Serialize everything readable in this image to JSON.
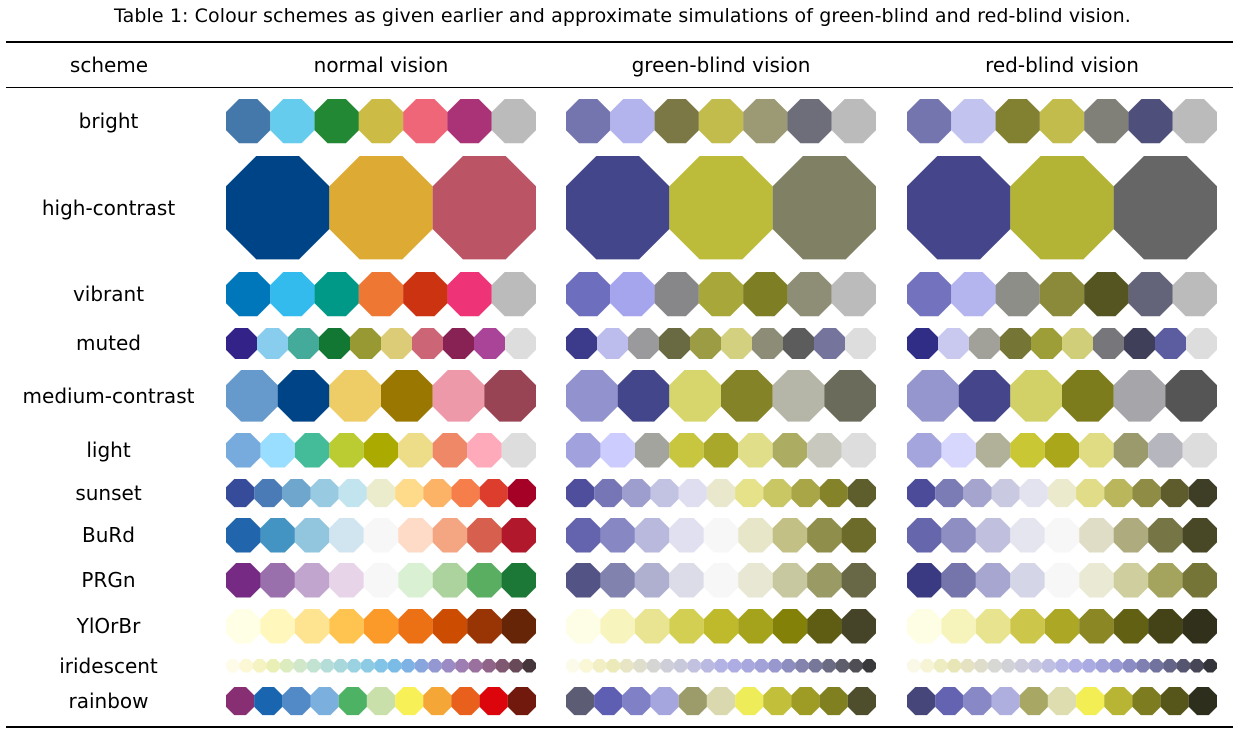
{
  "caption": "Table 1: Colour schemes as given earlier and approximate simulations of green-blind and red-blind vision.",
  "headers": {
    "scheme": "scheme",
    "normal": "normal vision",
    "green_blind": "green-blind vision",
    "red_blind": "red-blind vision"
  },
  "schemes": [
    {
      "name": "bright",
      "normal": [
        "#4477AA",
        "#66CCEE",
        "#228833",
        "#CCBB44",
        "#EE6677",
        "#AA3377",
        "#BBBBBB"
      ],
      "green_blind": [
        "#7474AF",
        "#B3B3ED",
        "#7B7845",
        "#C1BC4C",
        "#9B9A75",
        "#6E6E7B",
        "#BBBBBB"
      ],
      "red_blind": [
        "#7474AF",
        "#C3C3F0",
        "#828031",
        "#C1BC4C",
        "#808079",
        "#4F4F7B",
        "#BBBBBB"
      ]
    },
    {
      "name": "high-contrast",
      "normal": [
        "#004488",
        "#DDAA33",
        "#BB5566"
      ],
      "green_blind": [
        "#44468B",
        "#BCBC3A",
        "#808065"
      ],
      "red_blind": [
        "#44458A",
        "#B3B336",
        "#666666"
      ]
    },
    {
      "name": "vibrant",
      "normal": [
        "#0077BB",
        "#33BBEE",
        "#009988",
        "#EE7733",
        "#CC3311",
        "#EE3377",
        "#BBBBBB"
      ],
      "green_blind": [
        "#6E6EBE",
        "#A5A5EE",
        "#87878A",
        "#A7A73A",
        "#7E7E25",
        "#8E8E76",
        "#BBBBBB"
      ],
      "red_blind": [
        "#7272BE",
        "#B4B4EE",
        "#8E8E88",
        "#8A8A3A",
        "#555521",
        "#636379",
        "#BBBBBB"
      ]
    },
    {
      "name": "muted",
      "normal": [
        "#332288",
        "#88CCEE",
        "#44AA99",
        "#117733",
        "#999933",
        "#DDCC77",
        "#CC6677",
        "#882255",
        "#AA4499",
        "#DDDDDD"
      ],
      "green_blind": [
        "#3B3A8B",
        "#BDBDED",
        "#9A9A9C",
        "#6A6A42",
        "#9C9C45",
        "#D3D07F",
        "#8C8C77",
        "#5C5C5C",
        "#74749C",
        "#DDDDDD"
      ],
      "red_blind": [
        "#302D86",
        "#C9C9F0",
        "#A1A19A",
        "#757535",
        "#9E9E38",
        "#D1CE7A",
        "#76767B",
        "#3F3F5A",
        "#5C5CA0",
        "#DDDDDD"
      ]
    },
    {
      "name": "medium-contrast",
      "normal": [
        "#6699CC",
        "#004488",
        "#EECC66",
        "#997700",
        "#EE99AA",
        "#994455"
      ],
      "green_blind": [
        "#9292CE",
        "#44468B",
        "#D6D66C",
        "#858328",
        "#B6B6A8",
        "#6B6B5B"
      ],
      "red_blind": [
        "#9696CE",
        "#44458A",
        "#D1D168",
        "#7C7C1D",
        "#A6A6AA",
        "#555555"
      ]
    },
    {
      "name": "light",
      "normal": [
        "#77AADD",
        "#99DDFF",
        "#44BB99",
        "#BBCC33",
        "#AAAA00",
        "#EEDD88",
        "#EE8866",
        "#FFAABB",
        "#DDDDDD"
      ],
      "green_blind": [
        "#A1A1DE",
        "#CCCCFE",
        "#A4A49E",
        "#C8C63F",
        "#AAA82B",
        "#E1DE8A",
        "#ACAC63",
        "#C8C8BE",
        "#DDDDDD"
      ],
      "red_blind": [
        "#A5A5DE",
        "#D7D7FE",
        "#B1B19A",
        "#C9C733",
        "#AAA81A",
        "#DFDC84",
        "#9A9A6C",
        "#B6B6BE",
        "#DDDDDD"
      ]
    },
    {
      "name": "sunset",
      "normal": [
        "#364B9A",
        "#4A7BB7",
        "#6EA6CD",
        "#98CAE1",
        "#C2E4EF",
        "#EAECCC",
        "#FEDA8B",
        "#FDB366",
        "#F67E4B",
        "#DD3D2D",
        "#A50026"
      ],
      "green_blind": [
        "#4E4E9C",
        "#7676B7",
        "#9E9ECE",
        "#C2C2E3",
        "#DEDEF0",
        "#E9E8CD",
        "#E5E28A",
        "#C9C664",
        "#A8A646",
        "#858329",
        "#5E5D2C"
      ],
      "red_blind": [
        "#4B4B9A",
        "#7B7BB6",
        "#A4A4CE",
        "#C9C9E1",
        "#E3E3EF",
        "#ECEACC",
        "#E0DC87",
        "#B9B65C",
        "#8F8D45",
        "#5E5C2C",
        "#3E3D26"
      ]
    },
    {
      "name": "BuRd",
      "normal": [
        "#2166AC",
        "#4393C3",
        "#92C5DE",
        "#D1E5F0",
        "#F7F7F7",
        "#FDDBC7",
        "#F4A582",
        "#D6604D",
        "#B2182B"
      ],
      "green_blind": [
        "#6363AE",
        "#8787C4",
        "#B9B9DE",
        "#E0E0F0",
        "#F7F7F7",
        "#E7E6C8",
        "#C2C085",
        "#8F8E4B",
        "#6C6B2A"
      ],
      "red_blind": [
        "#6666AC",
        "#8E8EC3",
        "#C0C0DE",
        "#E5E5F0",
        "#F7F7F7",
        "#DFDDC5",
        "#AEAC7E",
        "#767545",
        "#484726"
      ]
    },
    {
      "name": "PRGn",
      "normal": [
        "#762A83",
        "#9970AB",
        "#C2A5CF",
        "#E7D4E8",
        "#F7F7F7",
        "#D9F0D3",
        "#ACD39E",
        "#5AAE61",
        "#1B7837"
      ],
      "green_blind": [
        "#535385",
        "#8282AE",
        "#AFAFD0",
        "#DCDCE8",
        "#F7F7F7",
        "#E7E7D3",
        "#C8C8A0",
        "#9A9A64",
        "#686846"
      ],
      "red_blind": [
        "#3A3A82",
        "#7575AB",
        "#A6A6D0",
        "#D5D5E8",
        "#F7F7F7",
        "#EAEAD4",
        "#CECE9F",
        "#A4A45F",
        "#757538"
      ]
    },
    {
      "name": "YlOrBr",
      "normal": [
        "#FFFFE5",
        "#FFF7BC",
        "#FEE391",
        "#FEC44F",
        "#FB9A29",
        "#EC7014",
        "#CC4C02",
        "#993404",
        "#662506"
      ],
      "green_blind": [
        "#FEFEE6",
        "#F7F4BD",
        "#E8E491",
        "#D3CF52",
        "#BEBA2C",
        "#A5A31C",
        "#838108",
        "#5F5D14",
        "#454428"
      ],
      "red_blind": [
        "#FEFEE5",
        "#F6F3BB",
        "#E7E38E",
        "#CCC74A",
        "#ACA825",
        "#8A8724",
        "#626013",
        "#444318",
        "#31301A"
      ]
    },
    {
      "name": "iridescent",
      "normal": [
        "#FEFBE9",
        "#FCF7D5",
        "#F5F3C1",
        "#EAF0B5",
        "#DDECBF",
        "#D0E7CA",
        "#C2E3D2",
        "#B5DDD8",
        "#A8D8DC",
        "#9BD2E1",
        "#8DCBE4",
        "#81C4E7",
        "#7BBCE7",
        "#7EB2E4",
        "#88A5DD",
        "#9398D2",
        "#9B8AC4",
        "#9D7DB2",
        "#9A709E",
        "#906388",
        "#805770",
        "#684957",
        "#46353A"
      ],
      "green_blind": [
        "#FCFBE9",
        "#F9F7D6",
        "#F1EFC3",
        "#EDEAB9",
        "#E7E5C3",
        "#DFDDCC",
        "#D5D5D3",
        "#CECED8",
        "#C9C9DC",
        "#C2C2E0",
        "#B9B9E2",
        "#B2B2E4",
        "#ADADE3",
        "#A8A8DF",
        "#A2A2D8",
        "#9898CE",
        "#8D8DC0",
        "#8383AD",
        "#77779A",
        "#6B6B84",
        "#5D5D6C",
        "#4E4E54",
        "#39393B"
      ],
      "red_blind": [
        "#FAF9E8",
        "#F6F4D5",
        "#EEECC1",
        "#E8E6B6",
        "#E4E2C0",
        "#DEDCCA",
        "#D7D7D3",
        "#D1D1D8",
        "#CCCCDC",
        "#C7C7E0",
        "#BFBFE3",
        "#B7B7E6",
        "#B1B1E6",
        "#ABABE3",
        "#A3A3DC",
        "#9898D2",
        "#8C8CC4",
        "#7F7FB2",
        "#72729F",
        "#646488",
        "#555570",
        "#464657",
        "#33333A"
      ]
    },
    {
      "name": "rainbow",
      "normal": [
        "#882E72",
        "#1965B0",
        "#5289C7",
        "#7BAFDE",
        "#4EB265",
        "#CAE0AB",
        "#F7F056",
        "#F4A736",
        "#E8601C",
        "#DC050C",
        "#72190E"
      ],
      "green_blind": [
        "#5C5C74",
        "#5E5EB2",
        "#8080C7",
        "#A6A6DF",
        "#9C9C6A",
        "#DAD8AE",
        "#EFEC5A",
        "#C2BF3A",
        "#9E9C25",
        "#818020",
        "#4E4D2C"
      ],
      "red_blind": [
        "#46467A",
        "#6363B1",
        "#8888C7",
        "#AEAEDF",
        "#A8A763",
        "#DEDDAF",
        "#F2EE54",
        "#B9B534",
        "#7E7C21",
        "#57561A",
        "#2E2E1C"
      ]
    }
  ]
}
